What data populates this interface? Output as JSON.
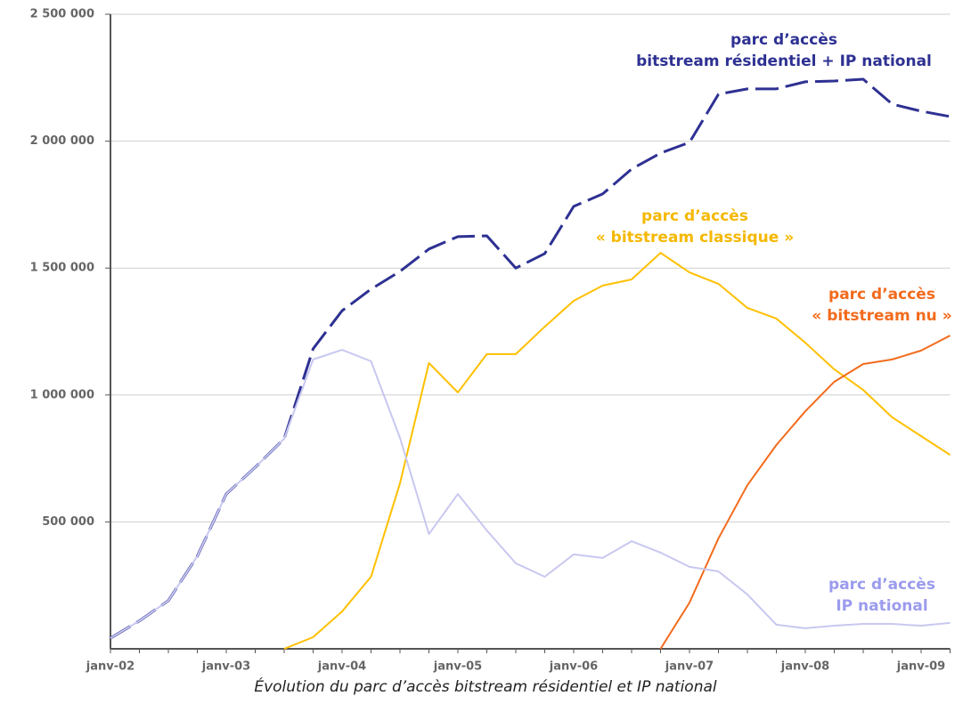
{
  "chart_data": {
    "type": "line",
    "caption": "Évolution du parc d’accès bitstream résidentiel et IP national",
    "categories": [
      "janv-02",
      null,
      null,
      null,
      "janv-03",
      null,
      null,
      null,
      "janv-04",
      null,
      null,
      null,
      "janv-05",
      null,
      null,
      null,
      "janv-06",
      null,
      null,
      null,
      "janv-07",
      null,
      null,
      null,
      "janv-08",
      null,
      null,
      null,
      "janv-09",
      null
    ],
    "series": [
      {
        "name": "parc d’accès\nbitstream résidentiel + IP national",
        "color": "#2e3192",
        "dashed": true,
        "values": [
          42000,
          110000,
          190000,
          365000,
          610000,
          715000,
          828000,
          1182000,
          1332000,
          1417000,
          1487000,
          1575000,
          1624000,
          1627000,
          1500000,
          1557000,
          1743000,
          1792000,
          1890000,
          1953000,
          1995000,
          2185000,
          2206000,
          2206000,
          2234000,
          2237000,
          2244000,
          2146000,
          2118000,
          2097000
        ]
      },
      {
        "name": "parc d’accès\n« bitstream classique »",
        "color": "#ffc000",
        "label_color": "#f5b800",
        "values": [
          null,
          null,
          null,
          null,
          null,
          null,
          0,
          46000,
          147000,
          284000,
          652000,
          1126000,
          1010000,
          1161000,
          1161000,
          1269000,
          1371000,
          1431000,
          1455000,
          1560000,
          1483000,
          1438000,
          1343000,
          1301000,
          1206000,
          1101000,
          1020000,
          912000,
          838000,
          764000
        ]
      },
      {
        "name": "parc d’accès\n« bitstream nu »",
        "color": "#f26b1d",
        "values": [
          null,
          null,
          null,
          null,
          null,
          null,
          null,
          null,
          null,
          null,
          null,
          null,
          null,
          null,
          null,
          null,
          null,
          null,
          null,
          0,
          182000,
          435000,
          645000,
          803000,
          936000,
          1052000,
          1122000,
          1140000,
          1175000,
          1234000
        ]
      },
      {
        "name": "parc d’accès\nIP national",
        "color": "#c8c8f0",
        "label_color": "#9b9bee",
        "values": [
          42000,
          110000,
          190000,
          365000,
          610000,
          715000,
          828000,
          1140000,
          1178000,
          1133000,
          831000,
          452000,
          610000,
          466000,
          337000,
          284000,
          372000,
          358000,
          424000,
          379000,
          323000,
          305000,
          214000,
          95000,
          81000,
          91000,
          98000,
          98000,
          91000,
          102000
        ]
      }
    ],
    "ylim": [
      0,
      2500000
    ],
    "yticks": [
      {
        "value": 500000,
        "label": "500 000"
      },
      {
        "value": 1000000,
        "label": "1 000 000"
      },
      {
        "value": 1500000,
        "label": "1 500 000"
      },
      {
        "value": 2000000,
        "label": "2 000 000"
      },
      {
        "value": 2500000,
        "label": "2 500 000"
      }
    ],
    "grid": true
  }
}
